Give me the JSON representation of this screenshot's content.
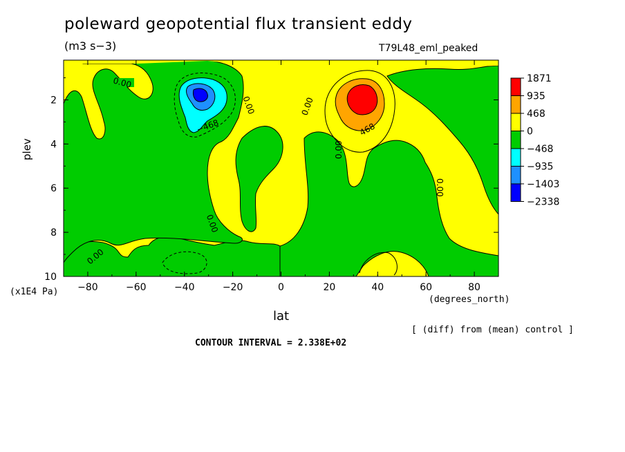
{
  "chart_data": {
    "type": "heatmap",
    "title": "poleward geopotential flux transient eddy",
    "units": "(m3 s−3)",
    "run_label": "T79L48_eml_peaked",
    "xlabel": "lat",
    "x_units": "(degrees_north)",
    "ylabel": "plev",
    "y_units": "(x1E4 Pa)",
    "note": "[ (diff) from (mean) control ]",
    "contour_interval_text": "CONTOUR INTERVAL = 2.338E+02",
    "contour_interval": 233.8,
    "xlim": [
      -90,
      90
    ],
    "ylim": [
      10,
      0.2
    ],
    "x_ticks": [
      -80,
      -60,
      -40,
      -20,
      0,
      20,
      40,
      60,
      80
    ],
    "x_tick_labels": [
      "−80",
      "−60",
      "−40",
      "−20",
      "0",
      "20",
      "40",
      "60",
      "80"
    ],
    "y_ticks": [
      2,
      4,
      6,
      8,
      10
    ],
    "y_tick_labels": [
      "2",
      "4",
      "6",
      "8",
      "10"
    ],
    "colorbar": {
      "labels": [
        "1871",
        "935",
        "468",
        "0",
        "−468",
        "−935",
        "−1403",
        "−2338"
      ],
      "colors": [
        "#ff0000",
        "#ffa500",
        "#ffff00",
        "#00cc00",
        "#00ffff",
        "#1e90ff",
        "#0000ff"
      ]
    },
    "contour_labels": [
      "0.00",
      "0.00",
      "0.00",
      "0.00",
      "0.00",
      "0.00",
      "−468",
      "468"
    ],
    "features": [
      {
        "sign": "negative",
        "lat": -33,
        "plev": 1.8,
        "approx_value": -1403
      },
      {
        "sign": "positive",
        "lat": 33,
        "plev": 1.9,
        "approx_value": 1871
      }
    ]
  }
}
